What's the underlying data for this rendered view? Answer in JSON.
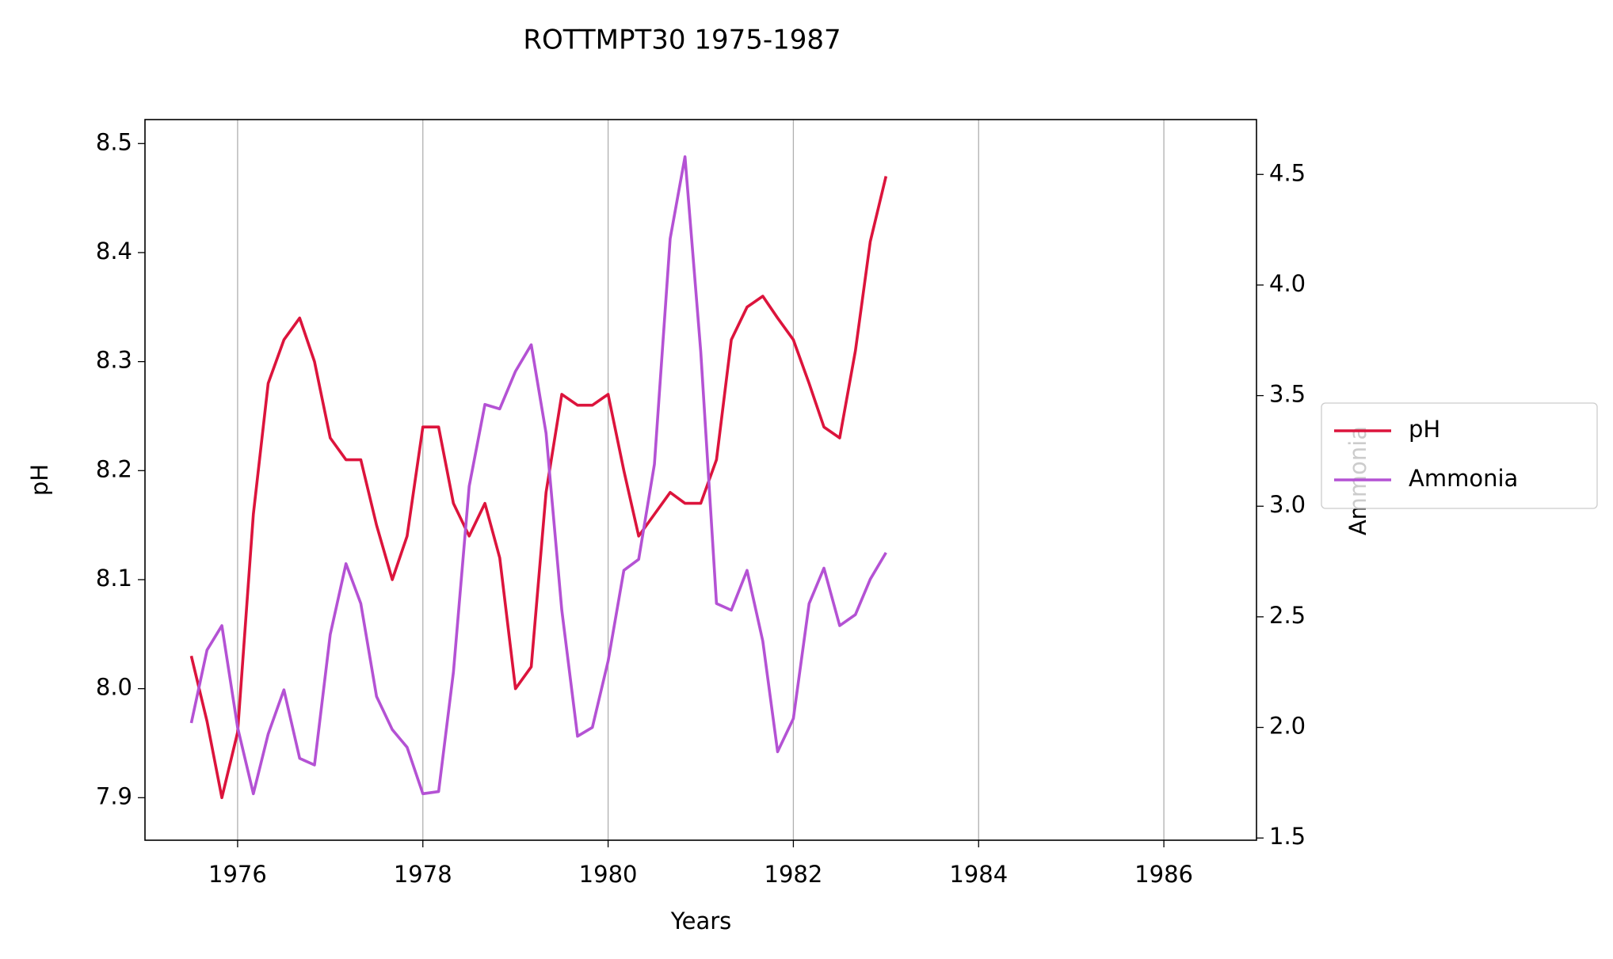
{
  "chart_data": {
    "type": "line",
    "title": "ROTTMPT30 1975-1987",
    "x_label": "Years",
    "y_label": "pH",
    "y2_label": "Ammonia",
    "x": [
      1975.5,
      1975.67,
      1975.83,
      1976.0,
      1976.17,
      1976.33,
      1976.5,
      1976.67,
      1976.83,
      1977.0,
      1977.17,
      1977.33,
      1977.5,
      1977.67,
      1977.83,
      1978.0,
      1978.17,
      1978.33,
      1978.5,
      1978.67,
      1978.83,
      1979.0,
      1979.17,
      1979.33,
      1979.5,
      1979.67,
      1979.83,
      1980.0,
      1980.17,
      1980.33,
      1980.5,
      1980.67,
      1980.83,
      1981.0,
      1981.17,
      1981.33,
      1981.5,
      1981.67,
      1981.83,
      1982.0,
      1982.17,
      1982.33,
      1982.5,
      1982.67,
      1982.83,
      1983.0
    ],
    "series": [
      {
        "name": "pH",
        "color": "#dc143c",
        "axis": "y",
        "values": [
          8.03,
          7.97,
          7.9,
          7.96,
          8.16,
          8.28,
          8.32,
          8.34,
          8.3,
          8.23,
          8.21,
          8.21,
          8.15,
          8.1,
          8.14,
          8.24,
          8.24,
          8.17,
          8.14,
          8.17,
          8.12,
          8.0,
          8.02,
          8.18,
          8.27,
          8.26,
          8.26,
          8.27,
          8.2,
          8.14,
          8.16,
          8.18,
          8.17,
          8.17,
          8.21,
          8.32,
          8.35,
          8.36,
          8.34,
          8.32,
          8.28,
          8.24,
          8.23,
          8.31,
          8.41,
          8.47
        ]
      },
      {
        "name": "Ammonia",
        "color": "#b452d4",
        "axis": "y2",
        "values": [
          2.02,
          2.35,
          2.46,
          2.0,
          1.7,
          1.97,
          2.17,
          1.86,
          1.83,
          2.42,
          2.74,
          2.56,
          2.14,
          1.99,
          1.91,
          1.7,
          1.71,
          2.25,
          3.09,
          3.46,
          3.44,
          3.61,
          3.73,
          3.33,
          2.53,
          1.96,
          2.0,
          2.3,
          2.71,
          2.76,
          3.19,
          4.21,
          4.58,
          3.7,
          2.56,
          2.53,
          2.71,
          2.39,
          1.89,
          2.04,
          2.56,
          2.72,
          2.46,
          2.51,
          2.67,
          2.79
        ]
      }
    ],
    "xlim": [
      1975,
      1987
    ],
    "xticks": [
      1976,
      1978,
      1980,
      1982,
      1984,
      1986
    ],
    "ylim": [
      7.861,
      8.522
    ],
    "yticks": [
      7.9,
      {
        "value": 8.0,
        "label": "8.0"
      },
      8.1,
      8.2,
      8.3,
      8.4,
      8.5
    ],
    "y2lim": [
      1.49,
      4.748
    ],
    "y2ticks": [
      1.5,
      {
        "value": 2.0,
        "label": "2.0"
      },
      2.5,
      {
        "value": 3.0,
        "label": "3.0"
      },
      3.5,
      {
        "value": 4.0,
        "label": "4.0"
      },
      4.5
    ],
    "grid": "x",
    "legend": "right"
  }
}
